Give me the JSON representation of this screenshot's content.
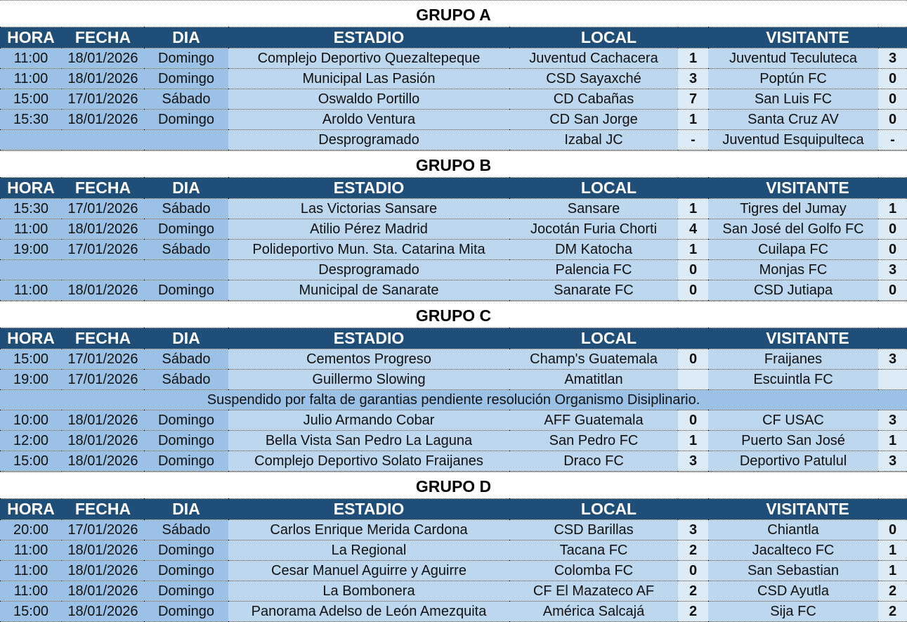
{
  "headers": [
    "HORA",
    "FECHA",
    "DIA",
    "ESTADIO",
    "LOCAL",
    "VISITANTE"
  ],
  "groups": [
    {
      "title": "GRUPO A",
      "rows": [
        [
          "11:00",
          "18/01/2026",
          "Domingo",
          "Complejo Deportivo Quezaltepeque",
          "Juventud Cachacera",
          "1",
          "Juventud Teculuteca",
          "3"
        ],
        [
          "11:00",
          "18/01/2026",
          "Domingo",
          "Municipal Las Pasión",
          "CSD Sayaxché",
          "3",
          "Poptún FC",
          "0"
        ],
        [
          "15:00",
          "17/01/2026",
          "Sábado",
          "Oswaldo Portillo",
          "CD Cabañas",
          "7",
          "San Luis FC",
          "0"
        ],
        [
          "15:30",
          "18/01/2026",
          "Domingo",
          "Aroldo Ventura",
          "CD San Jorge",
          "1",
          "Santa Cruz AV",
          "0"
        ],
        [
          "",
          "",
          "",
          "Desprogramado",
          "Izabal JC",
          "-",
          "Juventud Esquipulteca",
          "-"
        ]
      ]
    },
    {
      "title": "GRUPO B",
      "rows": [
        [
          "15:30",
          "17/01/2026",
          "Sábado",
          "Las Victorias Sansare",
          "Sansare",
          "1",
          "Tigres del Jumay",
          "1"
        ],
        [
          "11:00",
          "18/01/2026",
          "Domingo",
          "Atilio Pérez Madrid",
          "Jocotán Furia Chorti",
          "4",
          "San José del Golfo FC",
          "0"
        ],
        [
          "19:00",
          "17/01/2026",
          "Sábado",
          "Polideportivo Mun. Sta. Catarina Mita",
          "DM Katocha",
          "1",
          "Cuilapa FC",
          "0"
        ],
        [
          "",
          "",
          "",
          "Desprogramado",
          "Palencia FC",
          "0",
          "Monjas FC",
          "3"
        ],
        [
          "11:00",
          "18/01/2026",
          "Domingo",
          "Municipal de Sanarate",
          "Sanarate FC",
          "0",
          "CSD Jutiapa",
          "0"
        ]
      ]
    },
    {
      "title": "GRUPO C",
      "rows": [
        [
          "15:00",
          "17/01/2026",
          "Sábado",
          "Cementos Progreso",
          "Champ's Guatemala",
          "0",
          "Fraijanes",
          "3"
        ],
        [
          "19:00",
          "17/01/2026",
          "Sábado",
          "Guillermo Slowing",
          "Amatitlan",
          "",
          "Escuintla FC",
          ""
        ],
        {
          "note": "Suspendido por falta de garantias pendiente resolución Organismo Disiplinario."
        },
        [
          "10:00",
          "18/01/2026",
          "Domingo",
          "Julio Armando Cobar",
          "AFF Guatemala",
          "0",
          "CF USAC",
          "3"
        ],
        [
          "12:00",
          "18/01/2026",
          "Domingo",
          "Bella Vista San Pedro La Laguna",
          "San Pedro FC",
          "1",
          "Puerto San José",
          "1"
        ],
        [
          "15:00",
          "18/01/2026",
          "Domingo",
          "Complejo Deportivo Solato Fraijanes",
          "Draco FC",
          "3",
          "Deportivo Patulul",
          "3"
        ]
      ]
    },
    {
      "title": "GRUPO D",
      "rows": [
        [
          "20:00",
          "17/01/2026",
          "Sábado",
          "Carlos Enrique Merida Cardona",
          "CSD Barillas",
          "3",
          "Chiantla",
          "0"
        ],
        [
          "11:00",
          "18/01/2026",
          "Domingo",
          "La Regional",
          "Tacana FC",
          "2",
          "Jacalteco FC",
          "1"
        ],
        [
          "11:00",
          "18/01/2026",
          "Domingo",
          "Cesar Manuel Aguirre y Aguirre",
          "Colomba FC",
          "0",
          "San Sebastian",
          "1"
        ],
        [
          "11:00",
          "18/01/2026",
          "Domingo",
          "La Bombonera",
          "CF El Mazateco AF",
          "2",
          "CSD Ayutla",
          "2"
        ],
        [
          "15:00",
          "18/01/2026",
          "Domingo",
          "Panorama Adelso de León Amezquita",
          "América Salcajá",
          "2",
          "Sija FC",
          "2"
        ]
      ]
    }
  ]
}
